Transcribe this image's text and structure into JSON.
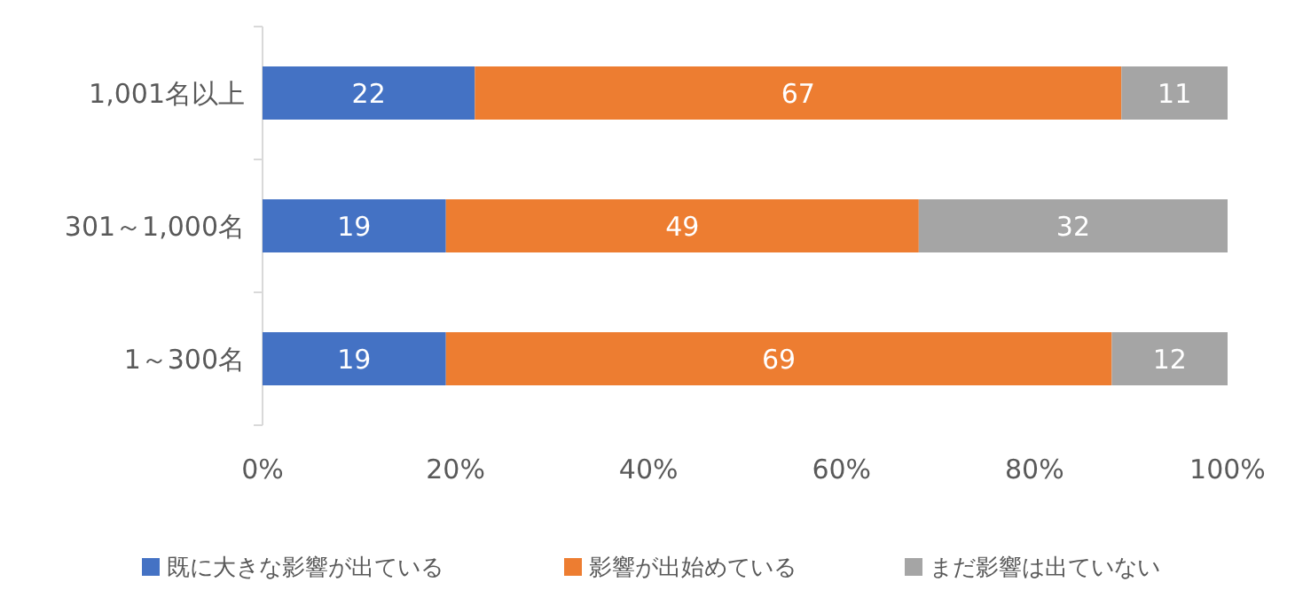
{
  "chart_data": {
    "type": "bar",
    "orientation": "horizontal",
    "stacked": true,
    "categories": [
      "1,001名以上",
      "301～1,000名",
      "1～300名"
    ],
    "series": [
      {
        "name": "既に大きな影響が出ている",
        "color": "#4472c4",
        "values": [
          22,
          19,
          19
        ]
      },
      {
        "name": "影響が出始めている",
        "color": "#ed7d31",
        "values": [
          67,
          49,
          69
        ]
      },
      {
        "name": "まだ影響は出ていない",
        "color": "#a5a5a5",
        "values": [
          11,
          32,
          12
        ]
      }
    ],
    "xlim": [
      0,
      100
    ],
    "xticks": [
      {
        "value": 0,
        "label": "0%"
      },
      {
        "value": 20,
        "label": "20%"
      },
      {
        "value": 40,
        "label": "40%"
      },
      {
        "value": 60,
        "label": "60%"
      },
      {
        "value": 80,
        "label": "80%"
      },
      {
        "value": 100,
        "label": "100%"
      }
    ],
    "data_labels": true,
    "legend": "bottom",
    "grid": false
  }
}
